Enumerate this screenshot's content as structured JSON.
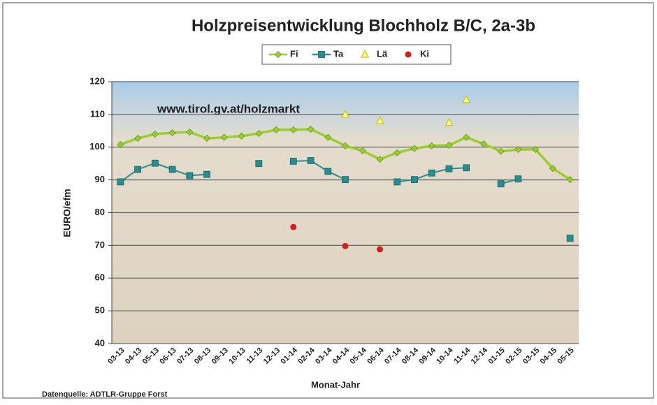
{
  "chart_data": {
    "type": "line",
    "title": "Holzpreisentwicklung Blochholz B/C, 2a-3b",
    "annotation": "www.tirol.gv.at/holzmarkt",
    "source": "Datenquelle: ADTLR-Gruppe Forst",
    "x_label": "Monat-Jahr",
    "y_label": "EURO/efm",
    "categories": [
      "03-13",
      "04-13",
      "05-13",
      "06-13",
      "07-13",
      "08-13",
      "09-13",
      "10-13",
      "11-13",
      "12-13",
      "01-14",
      "02-14",
      "03-14",
      "04-14",
      "05-14",
      "06-14",
      "07-14",
      "08-14",
      "09-14",
      "10-14",
      "11-14",
      "12-14",
      "01-15",
      "02-15",
      "03-15",
      "04-15",
      "05-15"
    ],
    "series": [
      {
        "name": "Fi",
        "color": "#9acd32",
        "marker": "diamond",
        "line": true,
        "values": [
          100.8,
          102.7,
          104,
          104.4,
          104.6,
          102.7,
          103,
          103.4,
          104.2,
          105.3,
          105.3,
          105.5,
          103,
          100.4,
          98.9,
          96.3,
          98.3,
          99.6,
          100.4,
          100.6,
          103,
          101,
          98.7,
          99.3,
          99.3,
          93.5,
          90.1
        ]
      },
      {
        "name": "Ta",
        "color": "#2a8c8c",
        "marker": "square",
        "line": true,
        "values": [
          89.4,
          93.2,
          95.1,
          93.2,
          91.3,
          91.7,
          null,
          null,
          95,
          null,
          95.7,
          95.9,
          92.6,
          90.1,
          null,
          null,
          89.4,
          90.1,
          92.1,
          93.4,
          93.7,
          null,
          88.8,
          90.3,
          null,
          null,
          72.2
        ]
      },
      {
        "name": "Lä",
        "color": "#c8c800",
        "marker": "triangle",
        "line": false,
        "values": [
          null,
          null,
          null,
          null,
          null,
          null,
          null,
          null,
          null,
          null,
          null,
          null,
          null,
          110,
          null,
          108,
          null,
          null,
          null,
          107.5,
          114.5,
          null,
          null,
          null,
          null,
          null,
          null
        ]
      },
      {
        "name": "Ki",
        "color": "#d02020",
        "marker": "circle",
        "line": false,
        "values": [
          null,
          null,
          null,
          null,
          null,
          null,
          null,
          null,
          null,
          null,
          75.6,
          null,
          null,
          69.8,
          null,
          68.8,
          null,
          null,
          null,
          null,
          null,
          null,
          null,
          null,
          null,
          null,
          null
        ]
      }
    ],
    "ylim": [
      40,
      120
    ],
    "yticks": [
      40,
      50,
      60,
      70,
      80,
      90,
      100,
      110,
      120
    ],
    "grid": true
  }
}
